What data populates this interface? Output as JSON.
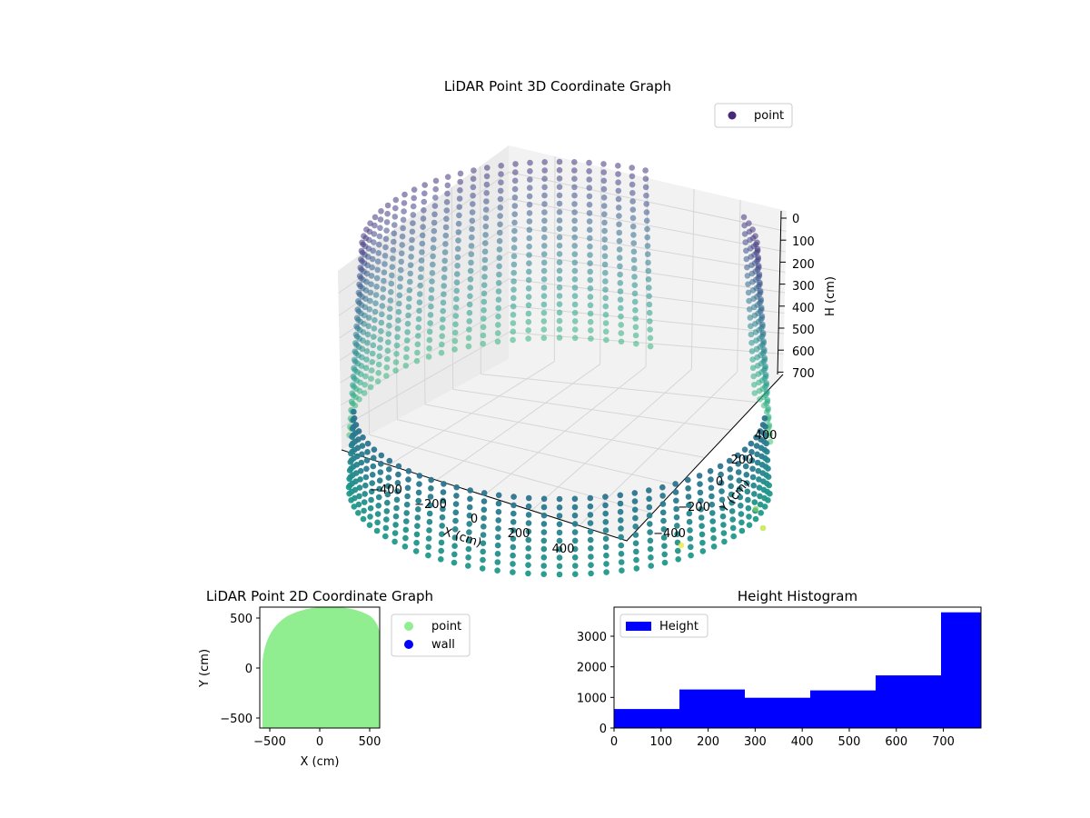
{
  "chart_data": [
    {
      "type": "scatter",
      "projection": "3d",
      "title": "LiDAR Point 3D Coordinate Graph",
      "xlabel": "X (cm)",
      "ylabel": "Y (cm)",
      "zlabel": "H (cm)",
      "xticks": [
        "−400",
        "−200",
        "0",
        "200",
        "400"
      ],
      "yticks": [
        "−400",
        "−200",
        "0",
        "200",
        "400"
      ],
      "zticks": [
        "0",
        "100",
        "200",
        "300",
        "400",
        "500",
        "600",
        "700"
      ],
      "zaxis_inverted": true,
      "xlim": [
        -560,
        560
      ],
      "ylim": [
        -560,
        560
      ],
      "zlim": [
        0,
        720
      ],
      "colormap": "viridis",
      "legend": {
        "position": "upper right",
        "entries": [
          {
            "name": "point",
            "color": "#482878"
          }
        ]
      },
      "series": [
        {
          "name": "point",
          "shape": "cylindrical wall of points, radius ~560 cm, height 0-700 cm, colored by height"
        }
      ]
    },
    {
      "type": "scatter",
      "title": "LiDAR Point 2D Coordinate Graph",
      "xlabel": "X (cm)",
      "ylabel": "Y (cm)",
      "xticks": [
        "−500",
        "0",
        "500"
      ],
      "yticks": [
        "−500",
        "0",
        "500"
      ],
      "xlim": [
        -600,
        600
      ],
      "ylim": [
        -600,
        600
      ],
      "legend": {
        "position": "outside right",
        "entries": [
          {
            "name": "point",
            "color": "#90ee90"
          },
          {
            "name": "wall",
            "color": "#0000ff"
          }
        ]
      }
    },
    {
      "type": "bar",
      "subtype": "histogram",
      "title": "Height Histogram",
      "xticks": [
        "0",
        "100",
        "200",
        "300",
        "400",
        "500",
        "600",
        "700"
      ],
      "yticks": [
        "0",
        "1000",
        "2000",
        "3000"
      ],
      "xlim": [
        0,
        780
      ],
      "ylim": [
        0,
        3950
      ],
      "bin_edges": [
        0,
        139,
        278,
        417,
        556,
        695,
        780
      ],
      "values": [
        620,
        1260,
        990,
        1230,
        1720,
        3780
      ],
      "color": "#0000ff",
      "legend": {
        "position": "upper left",
        "entries": [
          {
            "name": "Height",
            "color": "#0000ff"
          }
        ]
      }
    }
  ]
}
